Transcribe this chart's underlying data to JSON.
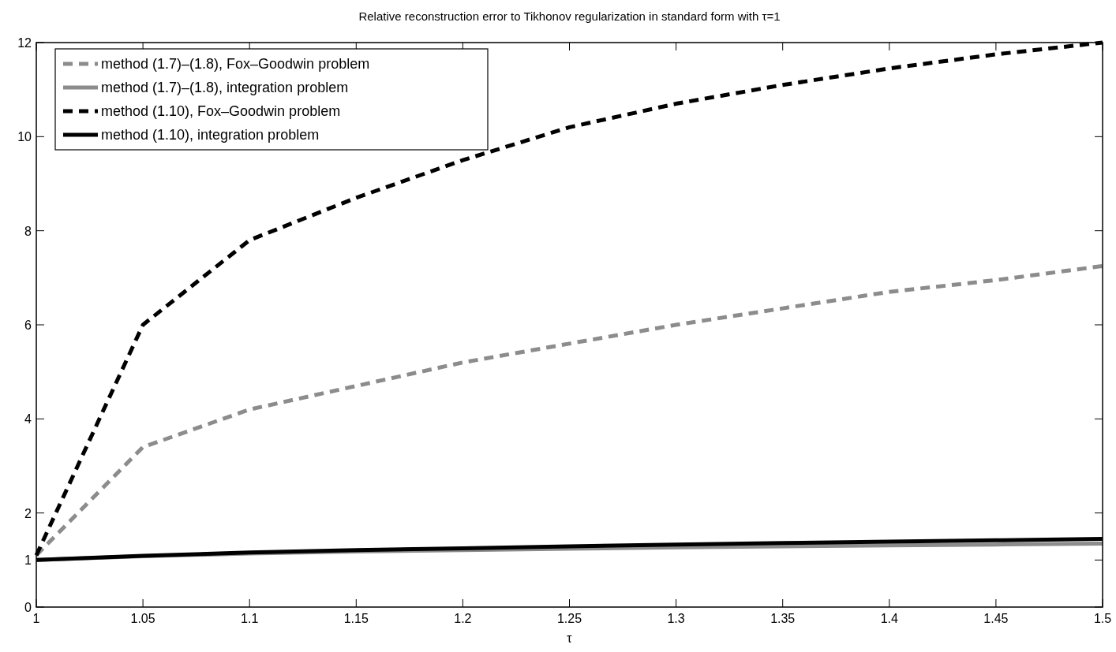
{
  "chart_data": {
    "type": "line",
    "title": "Relative reconstruction error to Tikhonov regularization in standard form with τ=1",
    "xlabel": "τ",
    "x": [
      1,
      1.05,
      1.1,
      1.15,
      1.2,
      1.25,
      1.3,
      1.35,
      1.4,
      1.45,
      1.5
    ],
    "series": [
      {
        "name": "method (1.7)–(1.8), Fox–Goodwin problem",
        "color": "#8c8c8c",
        "line_style": "dashed",
        "values": [
          1.1,
          3.4,
          4.2,
          4.7,
          5.2,
          5.6,
          6.0,
          6.35,
          6.7,
          6.95,
          7.25
        ]
      },
      {
        "name": "method (1.7)–(1.8), integration problem",
        "color": "#8c8c8c",
        "line_style": "solid",
        "values": [
          1.0,
          1.08,
          1.14,
          1.18,
          1.21,
          1.24,
          1.27,
          1.29,
          1.31,
          1.33,
          1.35
        ]
      },
      {
        "name": "method (1.10), Fox–Goodwin problem",
        "color": "#000000",
        "line_style": "dashed",
        "values": [
          1.1,
          6.0,
          7.8,
          8.7,
          9.5,
          10.2,
          10.7,
          11.1,
          11.45,
          11.75,
          12.0
        ]
      },
      {
        "name": "method (1.10), integration problem",
        "color": "#000000",
        "line_style": "solid",
        "values": [
          1.0,
          1.09,
          1.16,
          1.21,
          1.25,
          1.29,
          1.33,
          1.36,
          1.39,
          1.42,
          1.45
        ]
      }
    ],
    "xlim": [
      1,
      1.5
    ],
    "xticks": [
      1,
      1.05,
      1.1,
      1.15,
      1.2,
      1.25,
      1.3,
      1.35,
      1.4,
      1.45,
      1.5
    ],
    "ylim": [
      0,
      12
    ],
    "yticks": [
      0,
      1,
      2,
      4,
      6,
      8,
      10,
      12
    ],
    "grid": false,
    "legend": "top left",
    "marker": "none"
  }
}
